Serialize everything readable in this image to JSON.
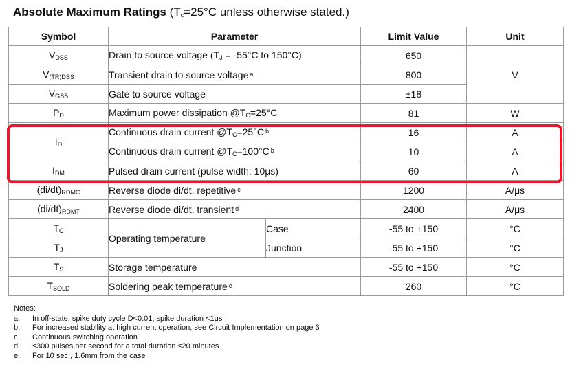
{
  "title": {
    "main": "Absolute Maximum Ratings",
    "condition": "(T",
    "condition_sub": "c",
    "condition_rest": "=25°C unless otherwise stated.)"
  },
  "table": {
    "headers": [
      "Symbol",
      "Parameter",
      "Limit Value",
      "Unit"
    ],
    "rows": {
      "vdss": {
        "sym": "V",
        "sym_sub": "DSS",
        "param": "Drain to source voltage (T",
        "param_sub": "J",
        "param_rest": " = -55°C to 150°C)",
        "value": "650"
      },
      "vtrdss": {
        "sym": "V",
        "sym_sub": "(TR)DSS",
        "param": "Transient drain to source voltage",
        "note": "a",
        "value": "800"
      },
      "vgss": {
        "sym": "V",
        "sym_sub": "GSS",
        "param": "Gate to source voltage",
        "value": "±18"
      },
      "pd": {
        "sym": "P",
        "sym_sub": "D",
        "param": "Maximum power dissipation @T",
        "param_sub": "C",
        "param_rest": "=25°C",
        "value": "81",
        "unit": "W"
      },
      "id25": {
        "sym": "I",
        "sym_sub": "D",
        "param": "Continuous drain current @T",
        "param_sub": "C",
        "param_rest": "=25°C",
        "note": "b",
        "value": "16",
        "unit": "A"
      },
      "id100": {
        "param": "Continuous drain current @T",
        "param_sub": "C",
        "param_rest": "=100°C",
        "note": "b",
        "value": "10",
        "unit": "A"
      },
      "idm": {
        "sym": "I",
        "sym_sub": "DM",
        "param": "Pulsed drain current (pulse width: 10μs)",
        "value": "60",
        "unit": "A"
      },
      "rdmc": {
        "sym": "(di/dt)",
        "sym_sub": "RDMC",
        "param": "Reverse diode di/dt, repetitive",
        "note": "c",
        "value": "1200",
        "unit": "A/μs"
      },
      "rdmt": {
        "sym": "(di/dt)",
        "sym_sub": "RDMT",
        "param": "Reverse diode di/dt, transient",
        "note": "d",
        "value": "2400",
        "unit": "A/μs"
      },
      "tc": {
        "sym": "T",
        "sym_sub": "C",
        "param": "Operating temperature",
        "sub": "Case",
        "value": "-55 to +150",
        "unit": "°C"
      },
      "tj": {
        "sym": "T",
        "sym_sub": "J",
        "sub": "Junction",
        "value": "-55 to +150",
        "unit": "°C"
      },
      "ts": {
        "sym": "T",
        "sym_sub": "S",
        "param": "Storage temperature",
        "value": "-55 to +150",
        "unit": "°C"
      },
      "tsold": {
        "sym": "T",
        "sym_sub": "SOLD",
        "param": "Soldering peak temperature",
        "note": "e",
        "value": "260",
        "unit": "°C"
      }
    },
    "voltage_unit": "V"
  },
  "notes": {
    "header": "Notes:",
    "items": [
      {
        "key": "a.",
        "text": "In off-state, spike duty cycle D<0.01, spike duration <1μs"
      },
      {
        "key": "b.",
        "text": "For increased stability at high current operation, see Circuit Implementation on page 3"
      },
      {
        "key": "c.",
        "text": "Continuous switching operation"
      },
      {
        "key": "d.",
        "text": "≤300 pulses per second for a total duration ≤20 minutes"
      },
      {
        "key": "e.",
        "text": "For 10 sec., 1.6mm from the case"
      }
    ]
  },
  "colors": {
    "highlight": "#e8192c",
    "border": "#9a9a9a"
  }
}
